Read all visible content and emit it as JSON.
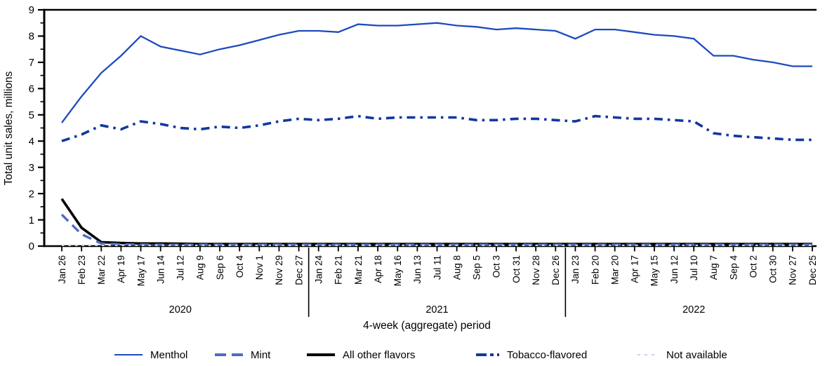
{
  "figure": {
    "ylabel": "Total unit sales, millions",
    "xlabel": "4-week (aggregate) period"
  },
  "legend": {
    "items": [
      {
        "label": "Menthol",
        "color": "#1d4bbf",
        "style": "solid"
      },
      {
        "label": "Mint",
        "color": "#4e6cc0",
        "style": "dashed"
      },
      {
        "label": "All other flavors",
        "color": "#000000",
        "style": "solid-bold"
      },
      {
        "label": "Tobacco-flavored",
        "color": "#12379f",
        "style": "dash-dot"
      },
      {
        "label": "Not available",
        "color": "#c8d2ef",
        "style": "dotted"
      }
    ]
  },
  "chart_data": {
    "type": "line",
    "title": "",
    "xlabel": "4-week (aggregate) period",
    "ylabel": "Total unit sales, millions",
    "ylim": [
      0,
      9
    ],
    "ytick_step": 1,
    "yminor_step": 0.5,
    "grid": false,
    "legend_position": "bottom",
    "categories": [
      "Jan 26",
      "Feb 23",
      "Mar 22",
      "Apr 19",
      "May 17",
      "Jun 14",
      "Jul 12",
      "Aug 9",
      "Sep 6",
      "Oct 4",
      "Nov 1",
      "Nov 29",
      "Dec 27",
      "Jan 24",
      "Feb 21",
      "Mar 21",
      "Apr 18",
      "May 16",
      "Jun 13",
      "Jul 11",
      "Aug 8",
      "Sep 5",
      "Oct 3",
      "Oct 31",
      "Nov 28",
      "Dec 26",
      "Jan 23",
      "Feb 20",
      "Mar 20",
      "Apr 17",
      "May 15",
      "Jun 12",
      "Jul 10",
      "Aug 7",
      "Sep 4",
      "Oct 2",
      "Oct 30",
      "Nov 27",
      "Dec 25"
    ],
    "year_groups": [
      {
        "label": "2020",
        "count": 13
      },
      {
        "label": "2021",
        "count": 13
      },
      {
        "label": "2022",
        "count": 13
      }
    ],
    "series": [
      {
        "name": "Menthol",
        "color": "#1d4bbf",
        "dash": "none",
        "width": 2.3,
        "values": [
          4.7,
          5.7,
          6.6,
          7.25,
          8.0,
          7.6,
          7.45,
          7.3,
          7.5,
          7.65,
          7.85,
          8.05,
          8.2,
          8.2,
          8.15,
          8.45,
          8.4,
          8.4,
          8.45,
          8.5,
          8.4,
          8.35,
          8.25,
          8.3,
          8.25,
          8.2,
          7.9,
          8.25,
          8.25,
          8.15,
          8.05,
          8.0,
          7.9,
          7.25,
          7.25,
          7.1,
          7.0,
          6.85,
          6.85
        ]
      },
      {
        "name": "Mint",
        "color": "#4e6cc0",
        "dash": "13 8",
        "width": 3.4,
        "values": [
          1.2,
          0.45,
          0.1,
          0.07,
          0.06,
          0.05,
          0.05,
          0.05,
          0.05,
          0.05,
          0.05,
          0.05,
          0.05,
          0.05,
          0.05,
          0.05,
          0.05,
          0.05,
          0.05,
          0.05,
          0.05,
          0.05,
          0.05,
          0.05,
          0.05,
          0.05,
          0.05,
          0.05,
          0.05,
          0.05,
          0.05,
          0.05,
          0.05,
          0.05,
          0.05,
          0.05,
          0.05,
          0.05,
          0.05
        ]
      },
      {
        "name": "All other flavors",
        "color": "#000000",
        "dash": "none",
        "width": 3.6,
        "values": [
          1.8,
          0.7,
          0.15,
          0.12,
          0.1,
          0.1,
          0.09,
          0.08,
          0.08,
          0.08,
          0.08,
          0.08,
          0.08,
          0.08,
          0.08,
          0.08,
          0.08,
          0.08,
          0.08,
          0.08,
          0.08,
          0.08,
          0.08,
          0.08,
          0.08,
          0.08,
          0.08,
          0.08,
          0.08,
          0.08,
          0.08,
          0.08,
          0.08,
          0.08,
          0.08,
          0.08,
          0.08,
          0.08,
          0.08
        ]
      },
      {
        "name": "Tobacco-flavored",
        "color": "#12379f",
        "dash": "12 7 3.5 7",
        "width": 3.6,
        "values": [
          4.0,
          4.25,
          4.6,
          4.45,
          4.75,
          4.65,
          4.5,
          4.45,
          4.55,
          4.5,
          4.6,
          4.75,
          4.85,
          4.8,
          4.85,
          4.95,
          4.85,
          4.9,
          4.9,
          4.9,
          4.9,
          4.8,
          4.8,
          4.85,
          4.85,
          4.8,
          4.75,
          4.95,
          4.9,
          4.85,
          4.85,
          4.8,
          4.75,
          4.3,
          4.2,
          4.15,
          4.1,
          4.05,
          4.05
        ]
      },
      {
        "name": "Not available",
        "color": "#c8d2ef",
        "dash": "3.5 6",
        "width": 2.2,
        "values": [
          0.03,
          0.03,
          0.03,
          0.03,
          0.03,
          0.03,
          0.03,
          0.03,
          0.03,
          0.03,
          0.03,
          0.03,
          0.03,
          0.03,
          0.03,
          0.03,
          0.03,
          0.03,
          0.03,
          0.03,
          0.03,
          0.03,
          0.03,
          0.03,
          0.03,
          0.03,
          0.03,
          0.03,
          0.03,
          0.03,
          0.03,
          0.03,
          0.03,
          0.03,
          0.03,
          0.03,
          0.03,
          0.03,
          0.03
        ]
      }
    ]
  }
}
